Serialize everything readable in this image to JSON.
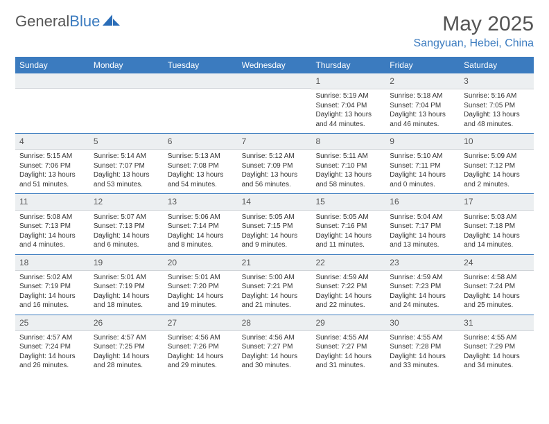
{
  "brand": {
    "name_a": "General",
    "name_b": "Blue"
  },
  "title": "May 2025",
  "location": "Sangyuan, Hebei, China",
  "colors": {
    "accent": "#3b7bbf",
    "header_bg": "#3b7bbf",
    "header_text": "#ffffff",
    "daynum_bg": "#eceff1",
    "border": "#3b7bbf",
    "text": "#333333",
    "muted": "#555555"
  },
  "day_names": [
    "Sunday",
    "Monday",
    "Tuesday",
    "Wednesday",
    "Thursday",
    "Friday",
    "Saturday"
  ],
  "weeks": [
    [
      {
        "n": "",
        "sr": "",
        "ss": "",
        "dl": ""
      },
      {
        "n": "",
        "sr": "",
        "ss": "",
        "dl": ""
      },
      {
        "n": "",
        "sr": "",
        "ss": "",
        "dl": ""
      },
      {
        "n": "",
        "sr": "",
        "ss": "",
        "dl": ""
      },
      {
        "n": "1",
        "sr": "Sunrise: 5:19 AM",
        "ss": "Sunset: 7:04 PM",
        "dl": "Daylight: 13 hours and 44 minutes."
      },
      {
        "n": "2",
        "sr": "Sunrise: 5:18 AM",
        "ss": "Sunset: 7:04 PM",
        "dl": "Daylight: 13 hours and 46 minutes."
      },
      {
        "n": "3",
        "sr": "Sunrise: 5:16 AM",
        "ss": "Sunset: 7:05 PM",
        "dl": "Daylight: 13 hours and 48 minutes."
      }
    ],
    [
      {
        "n": "4",
        "sr": "Sunrise: 5:15 AM",
        "ss": "Sunset: 7:06 PM",
        "dl": "Daylight: 13 hours and 51 minutes."
      },
      {
        "n": "5",
        "sr": "Sunrise: 5:14 AM",
        "ss": "Sunset: 7:07 PM",
        "dl": "Daylight: 13 hours and 53 minutes."
      },
      {
        "n": "6",
        "sr": "Sunrise: 5:13 AM",
        "ss": "Sunset: 7:08 PM",
        "dl": "Daylight: 13 hours and 54 minutes."
      },
      {
        "n": "7",
        "sr": "Sunrise: 5:12 AM",
        "ss": "Sunset: 7:09 PM",
        "dl": "Daylight: 13 hours and 56 minutes."
      },
      {
        "n": "8",
        "sr": "Sunrise: 5:11 AM",
        "ss": "Sunset: 7:10 PM",
        "dl": "Daylight: 13 hours and 58 minutes."
      },
      {
        "n": "9",
        "sr": "Sunrise: 5:10 AM",
        "ss": "Sunset: 7:11 PM",
        "dl": "Daylight: 14 hours and 0 minutes."
      },
      {
        "n": "10",
        "sr": "Sunrise: 5:09 AM",
        "ss": "Sunset: 7:12 PM",
        "dl": "Daylight: 14 hours and 2 minutes."
      }
    ],
    [
      {
        "n": "11",
        "sr": "Sunrise: 5:08 AM",
        "ss": "Sunset: 7:13 PM",
        "dl": "Daylight: 14 hours and 4 minutes."
      },
      {
        "n": "12",
        "sr": "Sunrise: 5:07 AM",
        "ss": "Sunset: 7:13 PM",
        "dl": "Daylight: 14 hours and 6 minutes."
      },
      {
        "n": "13",
        "sr": "Sunrise: 5:06 AM",
        "ss": "Sunset: 7:14 PM",
        "dl": "Daylight: 14 hours and 8 minutes."
      },
      {
        "n": "14",
        "sr": "Sunrise: 5:05 AM",
        "ss": "Sunset: 7:15 PM",
        "dl": "Daylight: 14 hours and 9 minutes."
      },
      {
        "n": "15",
        "sr": "Sunrise: 5:05 AM",
        "ss": "Sunset: 7:16 PM",
        "dl": "Daylight: 14 hours and 11 minutes."
      },
      {
        "n": "16",
        "sr": "Sunrise: 5:04 AM",
        "ss": "Sunset: 7:17 PM",
        "dl": "Daylight: 14 hours and 13 minutes."
      },
      {
        "n": "17",
        "sr": "Sunrise: 5:03 AM",
        "ss": "Sunset: 7:18 PM",
        "dl": "Daylight: 14 hours and 14 minutes."
      }
    ],
    [
      {
        "n": "18",
        "sr": "Sunrise: 5:02 AM",
        "ss": "Sunset: 7:19 PM",
        "dl": "Daylight: 14 hours and 16 minutes."
      },
      {
        "n": "19",
        "sr": "Sunrise: 5:01 AM",
        "ss": "Sunset: 7:19 PM",
        "dl": "Daylight: 14 hours and 18 minutes."
      },
      {
        "n": "20",
        "sr": "Sunrise: 5:01 AM",
        "ss": "Sunset: 7:20 PM",
        "dl": "Daylight: 14 hours and 19 minutes."
      },
      {
        "n": "21",
        "sr": "Sunrise: 5:00 AM",
        "ss": "Sunset: 7:21 PM",
        "dl": "Daylight: 14 hours and 21 minutes."
      },
      {
        "n": "22",
        "sr": "Sunrise: 4:59 AM",
        "ss": "Sunset: 7:22 PM",
        "dl": "Daylight: 14 hours and 22 minutes."
      },
      {
        "n": "23",
        "sr": "Sunrise: 4:59 AM",
        "ss": "Sunset: 7:23 PM",
        "dl": "Daylight: 14 hours and 24 minutes."
      },
      {
        "n": "24",
        "sr": "Sunrise: 4:58 AM",
        "ss": "Sunset: 7:24 PM",
        "dl": "Daylight: 14 hours and 25 minutes."
      }
    ],
    [
      {
        "n": "25",
        "sr": "Sunrise: 4:57 AM",
        "ss": "Sunset: 7:24 PM",
        "dl": "Daylight: 14 hours and 26 minutes."
      },
      {
        "n": "26",
        "sr": "Sunrise: 4:57 AM",
        "ss": "Sunset: 7:25 PM",
        "dl": "Daylight: 14 hours and 28 minutes."
      },
      {
        "n": "27",
        "sr": "Sunrise: 4:56 AM",
        "ss": "Sunset: 7:26 PM",
        "dl": "Daylight: 14 hours and 29 minutes."
      },
      {
        "n": "28",
        "sr": "Sunrise: 4:56 AM",
        "ss": "Sunset: 7:27 PM",
        "dl": "Daylight: 14 hours and 30 minutes."
      },
      {
        "n": "29",
        "sr": "Sunrise: 4:55 AM",
        "ss": "Sunset: 7:27 PM",
        "dl": "Daylight: 14 hours and 31 minutes."
      },
      {
        "n": "30",
        "sr": "Sunrise: 4:55 AM",
        "ss": "Sunset: 7:28 PM",
        "dl": "Daylight: 14 hours and 33 minutes."
      },
      {
        "n": "31",
        "sr": "Sunrise: 4:55 AM",
        "ss": "Sunset: 7:29 PM",
        "dl": "Daylight: 14 hours and 34 minutes."
      }
    ]
  ]
}
